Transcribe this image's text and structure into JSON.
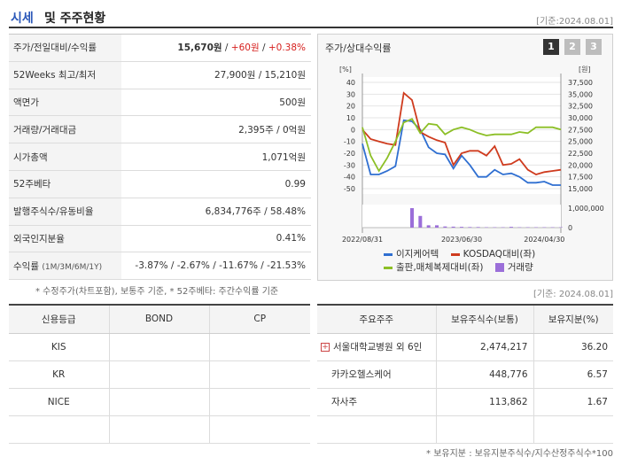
{
  "header": {
    "title_a": "시세",
    "title_b": "및 주주현황",
    "date": "[기준:2024.08.01]"
  },
  "info": {
    "price_label": "주가/전일대비/수익률",
    "price": "15,670원",
    "sep1": " / ",
    "change": "+60원",
    "sep2": " / ",
    "rate": "+0.38%",
    "w52_label": "52Weeks 최고/최저",
    "w52": "27,900원 / 15,210원",
    "face_label": "액면가",
    "face": "500원",
    "volume_label": "거래량/거래대금",
    "volume": "2,395주 / 0억원",
    "mcap_label": "시가총액",
    "mcap": "1,071억원",
    "beta_label": "52주베타",
    "beta": "0.99",
    "shares_label": "발행주식수/유동비율",
    "shares": "6,834,776주 / 58.48%",
    "foreign_label": "외국인지분율",
    "foreign": "0.41%",
    "return_label": "수익률",
    "return_period": "(1M/3M/6M/1Y)",
    "returns": "-3.87% / -2.67% / -11.67% / -21.53%"
  },
  "note1": "* 수정주가(차트포함), 보통주 기준, * 52주베타: 주간수익률 기준",
  "chart_panel": {
    "title": "주가/상대수익률",
    "periods": [
      "1",
      "2",
      "3"
    ]
  },
  "chart_data": {
    "type": "line",
    "x_ticks": [
      "2022/08/31",
      "2023/06/30",
      "2024/04/30"
    ],
    "left_axis_unit": "[%]",
    "right_axis_unit": "[원]",
    "left_ticks": [
      40,
      30,
      20,
      10,
      0,
      -10,
      -20,
      -30,
      -40,
      -50
    ],
    "right_ticks": [
      "37,500",
      "35,000",
      "32,500",
      "30,000",
      "27,500",
      "25,000",
      "22,500",
      "20,000",
      "17,500",
      "15,000"
    ],
    "volume_ticks": [
      "1,000,000",
      "0"
    ],
    "ylim": [
      -50,
      40
    ],
    "series": [
      {
        "name": "이지케어텍",
        "color": "#2f6fd1",
        "values": [
          -12,
          -38,
          -38,
          -35,
          -31,
          8,
          7,
          0,
          -15,
          -20,
          -21,
          -33,
          -22,
          -30,
          -40,
          -40,
          -34,
          -38,
          -37,
          -40,
          -45,
          -45,
          -44,
          -47,
          -47
        ]
      },
      {
        "name": "KOSDAQ대비(좌)",
        "color": "#cf3b1e",
        "values": [
          0,
          -8,
          -10,
          -12,
          -13,
          31,
          25,
          -2,
          -6,
          -9,
          -11,
          -30,
          -20,
          -18,
          -18,
          -22,
          -14,
          -30,
          -29,
          -25,
          -34,
          -38,
          -36,
          -35,
          -34
        ]
      },
      {
        "name": "출판,매체복제대비(좌)",
        "color": "#8cbf26",
        "values": [
          2,
          -22,
          -35,
          -24,
          -10,
          6,
          9,
          -3,
          5,
          4,
          -4,
          0,
          2,
          0,
          -3,
          -5,
          -4,
          -4,
          -4,
          -2,
          -3,
          2,
          2,
          2,
          0
        ]
      },
      {
        "name": "거래량",
        "color": "#9b6fd9",
        "type": "bar",
        "values": [
          0,
          0,
          0,
          0,
          0,
          0,
          1000000,
          600000,
          120000,
          120000,
          60000,
          50000,
          40000,
          30000,
          30000,
          20000,
          20000,
          20000,
          40000,
          20000,
          20000,
          20000,
          20000,
          20000,
          20000
        ]
      }
    ]
  },
  "credit": {
    "headers": [
      "신용등급",
      "BOND",
      "CP"
    ],
    "rows": [
      [
        "KIS",
        "",
        ""
      ],
      [
        "KR",
        "",
        ""
      ],
      [
        "NICE",
        "",
        ""
      ],
      [
        "",
        "",
        ""
      ]
    ]
  },
  "shareholders": {
    "headers": [
      "주요주주",
      "보유주식수(보통)",
      "보유지분(%)"
    ],
    "rows": [
      {
        "name": "서울대학교병원 외 6인",
        "shares": "2,474,217",
        "pct": "36.20",
        "expand": "+"
      },
      {
        "name": "카카오헬스케어",
        "shares": "448,776",
        "pct": "6.57",
        "expand": ""
      },
      {
        "name": "자사주",
        "shares": "113,862",
        "pct": "1.67",
        "expand": ""
      }
    ]
  },
  "date2": "[기준: 2024.08.01]",
  "note2": "* 보유지분 : 보유지분주식수/지수산정주식수*100"
}
